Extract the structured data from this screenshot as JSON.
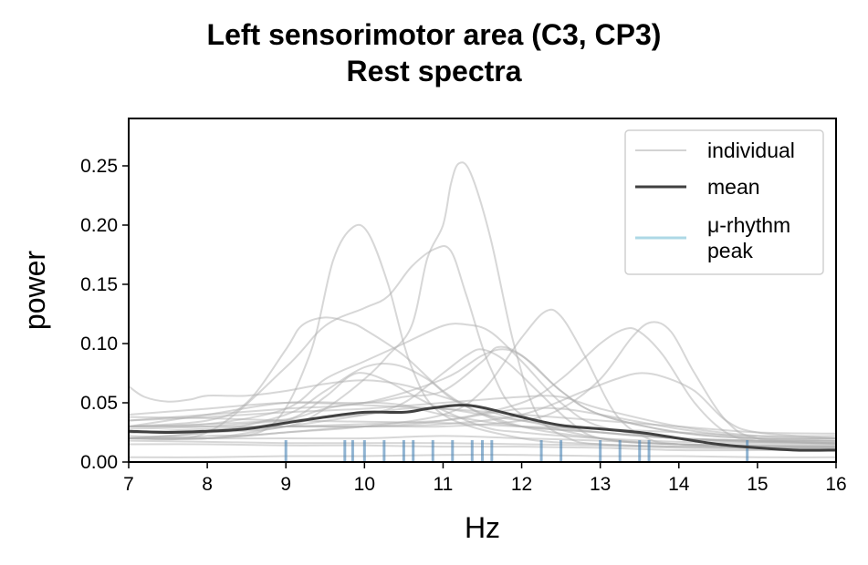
{
  "chart_data": {
    "type": "line",
    "title": [
      "Left sensorimotor area (C3, CP3)",
      "Rest spectra"
    ],
    "xlabel": "Hz",
    "ylabel": "power",
    "xlim": [
      7,
      16
    ],
    "ylim": [
      0,
      0.29
    ],
    "xticks": [
      7,
      8,
      9,
      10,
      11,
      12,
      13,
      14,
      15,
      16
    ],
    "yticks": [
      "0.00",
      "0.05",
      "0.10",
      "0.15",
      "0.20",
      "0.25"
    ],
    "grid": false,
    "legend": {
      "placement": "top-right",
      "entries": [
        {
          "label": "individual",
          "color": "#c8c8c8"
        },
        {
          "label": "mean",
          "color": "#404040"
        },
        {
          "label": "μ-rhythm\npeak",
          "color": "#add8e6"
        }
      ]
    },
    "colors": {
      "individual": "#b0b0b0",
      "mean": "#404040",
      "peak": "#4682b4"
    },
    "individual": [
      [
        [
          7,
          0.064
        ],
        [
          7.2,
          0.055
        ],
        [
          7.5,
          0.051
        ],
        [
          7.8,
          0.053
        ],
        [
          8,
          0.056
        ],
        [
          8.5,
          0.056
        ],
        [
          9,
          0.06
        ],
        [
          9.5,
          0.066
        ],
        [
          10,
          0.069
        ],
        [
          10.5,
          0.065
        ],
        [
          11,
          0.055
        ],
        [
          11.5,
          0.045
        ],
        [
          12,
          0.035
        ],
        [
          13,
          0.025
        ],
        [
          14,
          0.02
        ],
        [
          15,
          0.018
        ],
        [
          16,
          0.018
        ]
      ],
      [
        [
          7,
          0.03
        ],
        [
          8,
          0.035
        ],
        [
          8.5,
          0.05
        ],
        [
          9,
          0.095
        ],
        [
          9.2,
          0.115
        ],
        [
          9.5,
          0.122
        ],
        [
          9.8,
          0.118
        ],
        [
          10,
          0.112
        ],
        [
          10.5,
          0.09
        ],
        [
          11,
          0.06
        ],
        [
          11.5,
          0.04
        ],
        [
          12,
          0.03
        ],
        [
          13,
          0.025
        ],
        [
          14,
          0.02
        ],
        [
          15,
          0.018
        ],
        [
          16,
          0.017
        ]
      ],
      [
        [
          7,
          0.02
        ],
        [
          8,
          0.022
        ],
        [
          8.8,
          0.03
        ],
        [
          9.3,
          0.09
        ],
        [
          9.6,
          0.17
        ],
        [
          9.85,
          0.198
        ],
        [
          10.05,
          0.193
        ],
        [
          10.3,
          0.15
        ],
        [
          10.6,
          0.08
        ],
        [
          11,
          0.04
        ],
        [
          12,
          0.02
        ],
        [
          13,
          0.015
        ],
        [
          14,
          0.013
        ],
        [
          15,
          0.012
        ],
        [
          16,
          0.012
        ]
      ],
      [
        [
          7,
          0.025
        ],
        [
          8,
          0.025
        ],
        [
          9,
          0.03
        ],
        [
          9.5,
          0.045
        ],
        [
          10,
          0.07
        ],
        [
          10.3,
          0.09
        ],
        [
          10.6,
          0.115
        ],
        [
          10.8,
          0.172
        ],
        [
          11,
          0.2
        ],
        [
          11.1,
          0.235
        ],
        [
          11.2,
          0.252
        ],
        [
          11.35,
          0.244
        ],
        [
          11.6,
          0.19
        ],
        [
          11.9,
          0.1
        ],
        [
          12.2,
          0.04
        ],
        [
          12.6,
          0.02
        ],
        [
          13,
          0.015
        ],
        [
          14,
          0.013
        ],
        [
          16,
          0.012
        ]
      ],
      [
        [
          7,
          0.02
        ],
        [
          8,
          0.025
        ],
        [
          9,
          0.08
        ],
        [
          9.5,
          0.115
        ],
        [
          10,
          0.13
        ],
        [
          10.3,
          0.14
        ],
        [
          10.6,
          0.165
        ],
        [
          10.9,
          0.18
        ],
        [
          11.1,
          0.178
        ],
        [
          11.3,
          0.14
        ],
        [
          11.6,
          0.08
        ],
        [
          12,
          0.04
        ],
        [
          13,
          0.02
        ],
        [
          14,
          0.015
        ],
        [
          16,
          0.013
        ]
      ],
      [
        [
          7,
          0.03
        ],
        [
          8,
          0.032
        ],
        [
          9,
          0.045
        ],
        [
          9.5,
          0.07
        ],
        [
          10,
          0.085
        ],
        [
          10.5,
          0.1
        ],
        [
          11,
          0.115
        ],
        [
          11.3,
          0.116
        ],
        [
          11.6,
          0.11
        ],
        [
          12,
          0.085
        ],
        [
          12.5,
          0.05
        ],
        [
          13,
          0.03
        ],
        [
          14,
          0.02
        ],
        [
          15,
          0.017
        ],
        [
          16,
          0.016
        ]
      ],
      [
        [
          7,
          0.02
        ],
        [
          8,
          0.02
        ],
        [
          9,
          0.025
        ],
        [
          10,
          0.03
        ],
        [
          11,
          0.04
        ],
        [
          11.5,
          0.06
        ],
        [
          12,
          0.105
        ],
        [
          12.3,
          0.127
        ],
        [
          12.5,
          0.123
        ],
        [
          12.8,
          0.09
        ],
        [
          13.2,
          0.04
        ],
        [
          13.6,
          0.02
        ],
        [
          14,
          0.015
        ],
        [
          15,
          0.012
        ],
        [
          16,
          0.012
        ]
      ],
      [
        [
          7,
          0.025
        ],
        [
          8,
          0.025
        ],
        [
          9,
          0.03
        ],
        [
          10,
          0.03
        ],
        [
          11,
          0.035
        ],
        [
          12,
          0.05
        ],
        [
          12.5,
          0.07
        ],
        [
          13,
          0.1
        ],
        [
          13.3,
          0.112
        ],
        [
          13.5,
          0.11
        ],
        [
          13.8,
          0.09
        ],
        [
          14.2,
          0.05
        ],
        [
          14.6,
          0.025
        ],
        [
          15,
          0.018
        ],
        [
          16,
          0.016
        ]
      ],
      [
        [
          7,
          0.02
        ],
        [
          8,
          0.02
        ],
        [
          9,
          0.025
        ],
        [
          10,
          0.03
        ],
        [
          11,
          0.03
        ],
        [
          12,
          0.035
        ],
        [
          12.5,
          0.045
        ],
        [
          13,
          0.07
        ],
        [
          13.4,
          0.105
        ],
        [
          13.65,
          0.118
        ],
        [
          13.9,
          0.11
        ],
        [
          14.2,
          0.075
        ],
        [
          14.6,
          0.035
        ],
        [
          15,
          0.02
        ],
        [
          16,
          0.015
        ]
      ],
      [
        [
          7,
          0.03
        ],
        [
          8,
          0.04
        ],
        [
          9,
          0.05
        ],
        [
          10,
          0.05
        ],
        [
          10.5,
          0.055
        ],
        [
          11,
          0.06
        ],
        [
          11.5,
          0.085
        ],
        [
          11.7,
          0.097
        ],
        [
          12,
          0.09
        ],
        [
          12.5,
          0.06
        ],
        [
          13,
          0.04
        ],
        [
          14,
          0.025
        ],
        [
          15,
          0.02
        ],
        [
          16,
          0.02
        ]
      ],
      [
        [
          7,
          0.02
        ],
        [
          8,
          0.025
        ],
        [
          9,
          0.04
        ],
        [
          9.5,
          0.06
        ],
        [
          10,
          0.08
        ],
        [
          10.4,
          0.082
        ],
        [
          10.8,
          0.07
        ],
        [
          11.2,
          0.05
        ],
        [
          12,
          0.03
        ],
        [
          13,
          0.02
        ],
        [
          14,
          0.015
        ],
        [
          16,
          0.013
        ]
      ],
      [
        [
          7,
          0.035
        ],
        [
          8,
          0.04
        ],
        [
          9,
          0.045
        ],
        [
          10,
          0.05
        ],
        [
          11,
          0.07
        ],
        [
          11.5,
          0.09
        ],
        [
          11.8,
          0.095
        ],
        [
          12.1,
          0.085
        ],
        [
          12.5,
          0.06
        ],
        [
          13,
          0.04
        ],
        [
          14,
          0.025
        ],
        [
          15,
          0.02
        ],
        [
          16,
          0.02
        ]
      ],
      [
        [
          7,
          0.02
        ],
        [
          8,
          0.02
        ],
        [
          9,
          0.03
        ],
        [
          10,
          0.04
        ],
        [
          10.5,
          0.05
        ],
        [
          11,
          0.075
        ],
        [
          11.3,
          0.09
        ],
        [
          11.5,
          0.095
        ],
        [
          11.8,
          0.085
        ],
        [
          12.2,
          0.06
        ],
        [
          12.6,
          0.035
        ],
        [
          13,
          0.02
        ],
        [
          14,
          0.015
        ],
        [
          16,
          0.014
        ]
      ],
      [
        [
          7,
          0.02
        ],
        [
          8,
          0.025
        ],
        [
          9,
          0.035
        ],
        [
          9.5,
          0.055
        ],
        [
          9.8,
          0.072
        ],
        [
          10,
          0.075
        ],
        [
          10.3,
          0.068
        ],
        [
          10.8,
          0.05
        ],
        [
          11.5,
          0.03
        ],
        [
          12,
          0.025
        ],
        [
          13,
          0.02
        ],
        [
          14,
          0.017
        ],
        [
          16,
          0.015
        ]
      ],
      [
        [
          7,
          0.03
        ],
        [
          8,
          0.03
        ],
        [
          9,
          0.03
        ],
        [
          10,
          0.03
        ],
        [
          11,
          0.032
        ],
        [
          12,
          0.04
        ],
        [
          12.8,
          0.06
        ],
        [
          13.2,
          0.07
        ],
        [
          13.5,
          0.075
        ],
        [
          13.8,
          0.072
        ],
        [
          14.2,
          0.06
        ],
        [
          14.6,
          0.035
        ],
        [
          15,
          0.025
        ],
        [
          16,
          0.02
        ]
      ],
      [
        [
          7,
          0.04
        ],
        [
          8,
          0.045
        ],
        [
          9,
          0.05
        ],
        [
          10,
          0.048
        ],
        [
          11,
          0.045
        ],
        [
          12,
          0.04
        ],
        [
          13,
          0.035
        ],
        [
          14,
          0.03
        ],
        [
          15,
          0.025
        ],
        [
          16,
          0.024
        ]
      ],
      [
        [
          7,
          0.035
        ],
        [
          8,
          0.038
        ],
        [
          9,
          0.042
        ],
        [
          10,
          0.045
        ],
        [
          11,
          0.05
        ],
        [
          12,
          0.055
        ],
        [
          12.5,
          0.055
        ],
        [
          13,
          0.045
        ],
        [
          14,
          0.03
        ],
        [
          15,
          0.022
        ],
        [
          16,
          0.02
        ]
      ],
      [
        [
          7,
          0.025
        ],
        [
          8,
          0.028
        ],
        [
          9,
          0.03
        ],
        [
          10,
          0.032
        ],
        [
          11,
          0.035
        ],
        [
          11.5,
          0.04
        ],
        [
          12,
          0.045
        ],
        [
          12.5,
          0.045
        ],
        [
          13,
          0.04
        ],
        [
          14,
          0.028
        ],
        [
          15,
          0.02
        ],
        [
          16,
          0.018
        ]
      ],
      [
        [
          7,
          0.022
        ],
        [
          8,
          0.02
        ],
        [
          9,
          0.02
        ],
        [
          10,
          0.02
        ],
        [
          11,
          0.022
        ],
        [
          12,
          0.02
        ],
        [
          13,
          0.018
        ],
        [
          14,
          0.015
        ],
        [
          15,
          0.013
        ],
        [
          16,
          0.013
        ]
      ],
      [
        [
          7,
          0.018
        ],
        [
          8,
          0.017
        ],
        [
          9,
          0.016
        ],
        [
          10,
          0.016
        ],
        [
          11,
          0.016
        ],
        [
          12,
          0.015
        ],
        [
          13,
          0.014
        ],
        [
          14,
          0.012
        ],
        [
          15,
          0.011
        ],
        [
          16,
          0.011
        ]
      ],
      [
        [
          7,
          0.015
        ],
        [
          8,
          0.015
        ],
        [
          9,
          0.014
        ],
        [
          10,
          0.014
        ],
        [
          11,
          0.013
        ],
        [
          12,
          0.013
        ],
        [
          13,
          0.012
        ],
        [
          14,
          0.01
        ],
        [
          15,
          0.01
        ],
        [
          16,
          0.01
        ]
      ],
      [
        [
          7,
          0.028
        ],
        [
          8,
          0.03
        ],
        [
          9,
          0.035
        ],
        [
          10,
          0.04
        ],
        [
          10.5,
          0.045
        ],
        [
          11,
          0.045
        ],
        [
          11.5,
          0.04
        ],
        [
          12,
          0.035
        ],
        [
          13,
          0.028
        ],
        [
          14,
          0.02
        ],
        [
          15,
          0.017
        ],
        [
          16,
          0.016
        ]
      ],
      [
        [
          7,
          0.038
        ],
        [
          8,
          0.037
        ],
        [
          9,
          0.035
        ],
        [
          10,
          0.034
        ],
        [
          11,
          0.033
        ],
        [
          12,
          0.03
        ],
        [
          13,
          0.028
        ],
        [
          14,
          0.025
        ],
        [
          15,
          0.022
        ],
        [
          16,
          0.022
        ]
      ],
      [
        [
          7,
          0.03
        ],
        [
          8,
          0.032
        ],
        [
          9,
          0.036
        ],
        [
          9.5,
          0.045
        ],
        [
          10,
          0.05
        ],
        [
          10.5,
          0.048
        ],
        [
          11,
          0.04
        ],
        [
          12,
          0.03
        ],
        [
          13,
          0.025
        ],
        [
          14,
          0.02
        ],
        [
          15,
          0.018
        ],
        [
          16,
          0.018
        ]
      ],
      [
        [
          7,
          0.004
        ],
        [
          8,
          0.004
        ],
        [
          9,
          0.005
        ],
        [
          10,
          0.005
        ],
        [
          11,
          0.006
        ],
        [
          12,
          0.006
        ],
        [
          13,
          0.005
        ],
        [
          14,
          0.005
        ],
        [
          15,
          0.004
        ],
        [
          16,
          0.004
        ]
      ]
    ],
    "mean": [
      [
        7,
        0.026
      ],
      [
        7.5,
        0.025
      ],
      [
        8,
        0.026
      ],
      [
        8.5,
        0.028
      ],
      [
        9,
        0.033
      ],
      [
        9.5,
        0.038
      ],
      [
        10,
        0.042
      ],
      [
        10.5,
        0.042
      ],
      [
        10.8,
        0.045
      ],
      [
        11.2,
        0.048
      ],
      [
        11.5,
        0.046
      ],
      [
        12,
        0.038
      ],
      [
        12.5,
        0.031
      ],
      [
        13,
        0.028
      ],
      [
        13.5,
        0.025
      ],
      [
        14,
        0.02
      ],
      [
        14.5,
        0.015
      ],
      [
        15,
        0.012
      ],
      [
        15.5,
        0.01
      ],
      [
        16,
        0.01
      ]
    ],
    "mu_rhythm_peaks": [
      9.0,
      9.75,
      9.85,
      10.0,
      10.25,
      10.5,
      10.62,
      10.87,
      11.12,
      11.37,
      11.5,
      11.62,
      12.25,
      12.5,
      13.0,
      13.25,
      13.5,
      13.62,
      14.87
    ]
  }
}
